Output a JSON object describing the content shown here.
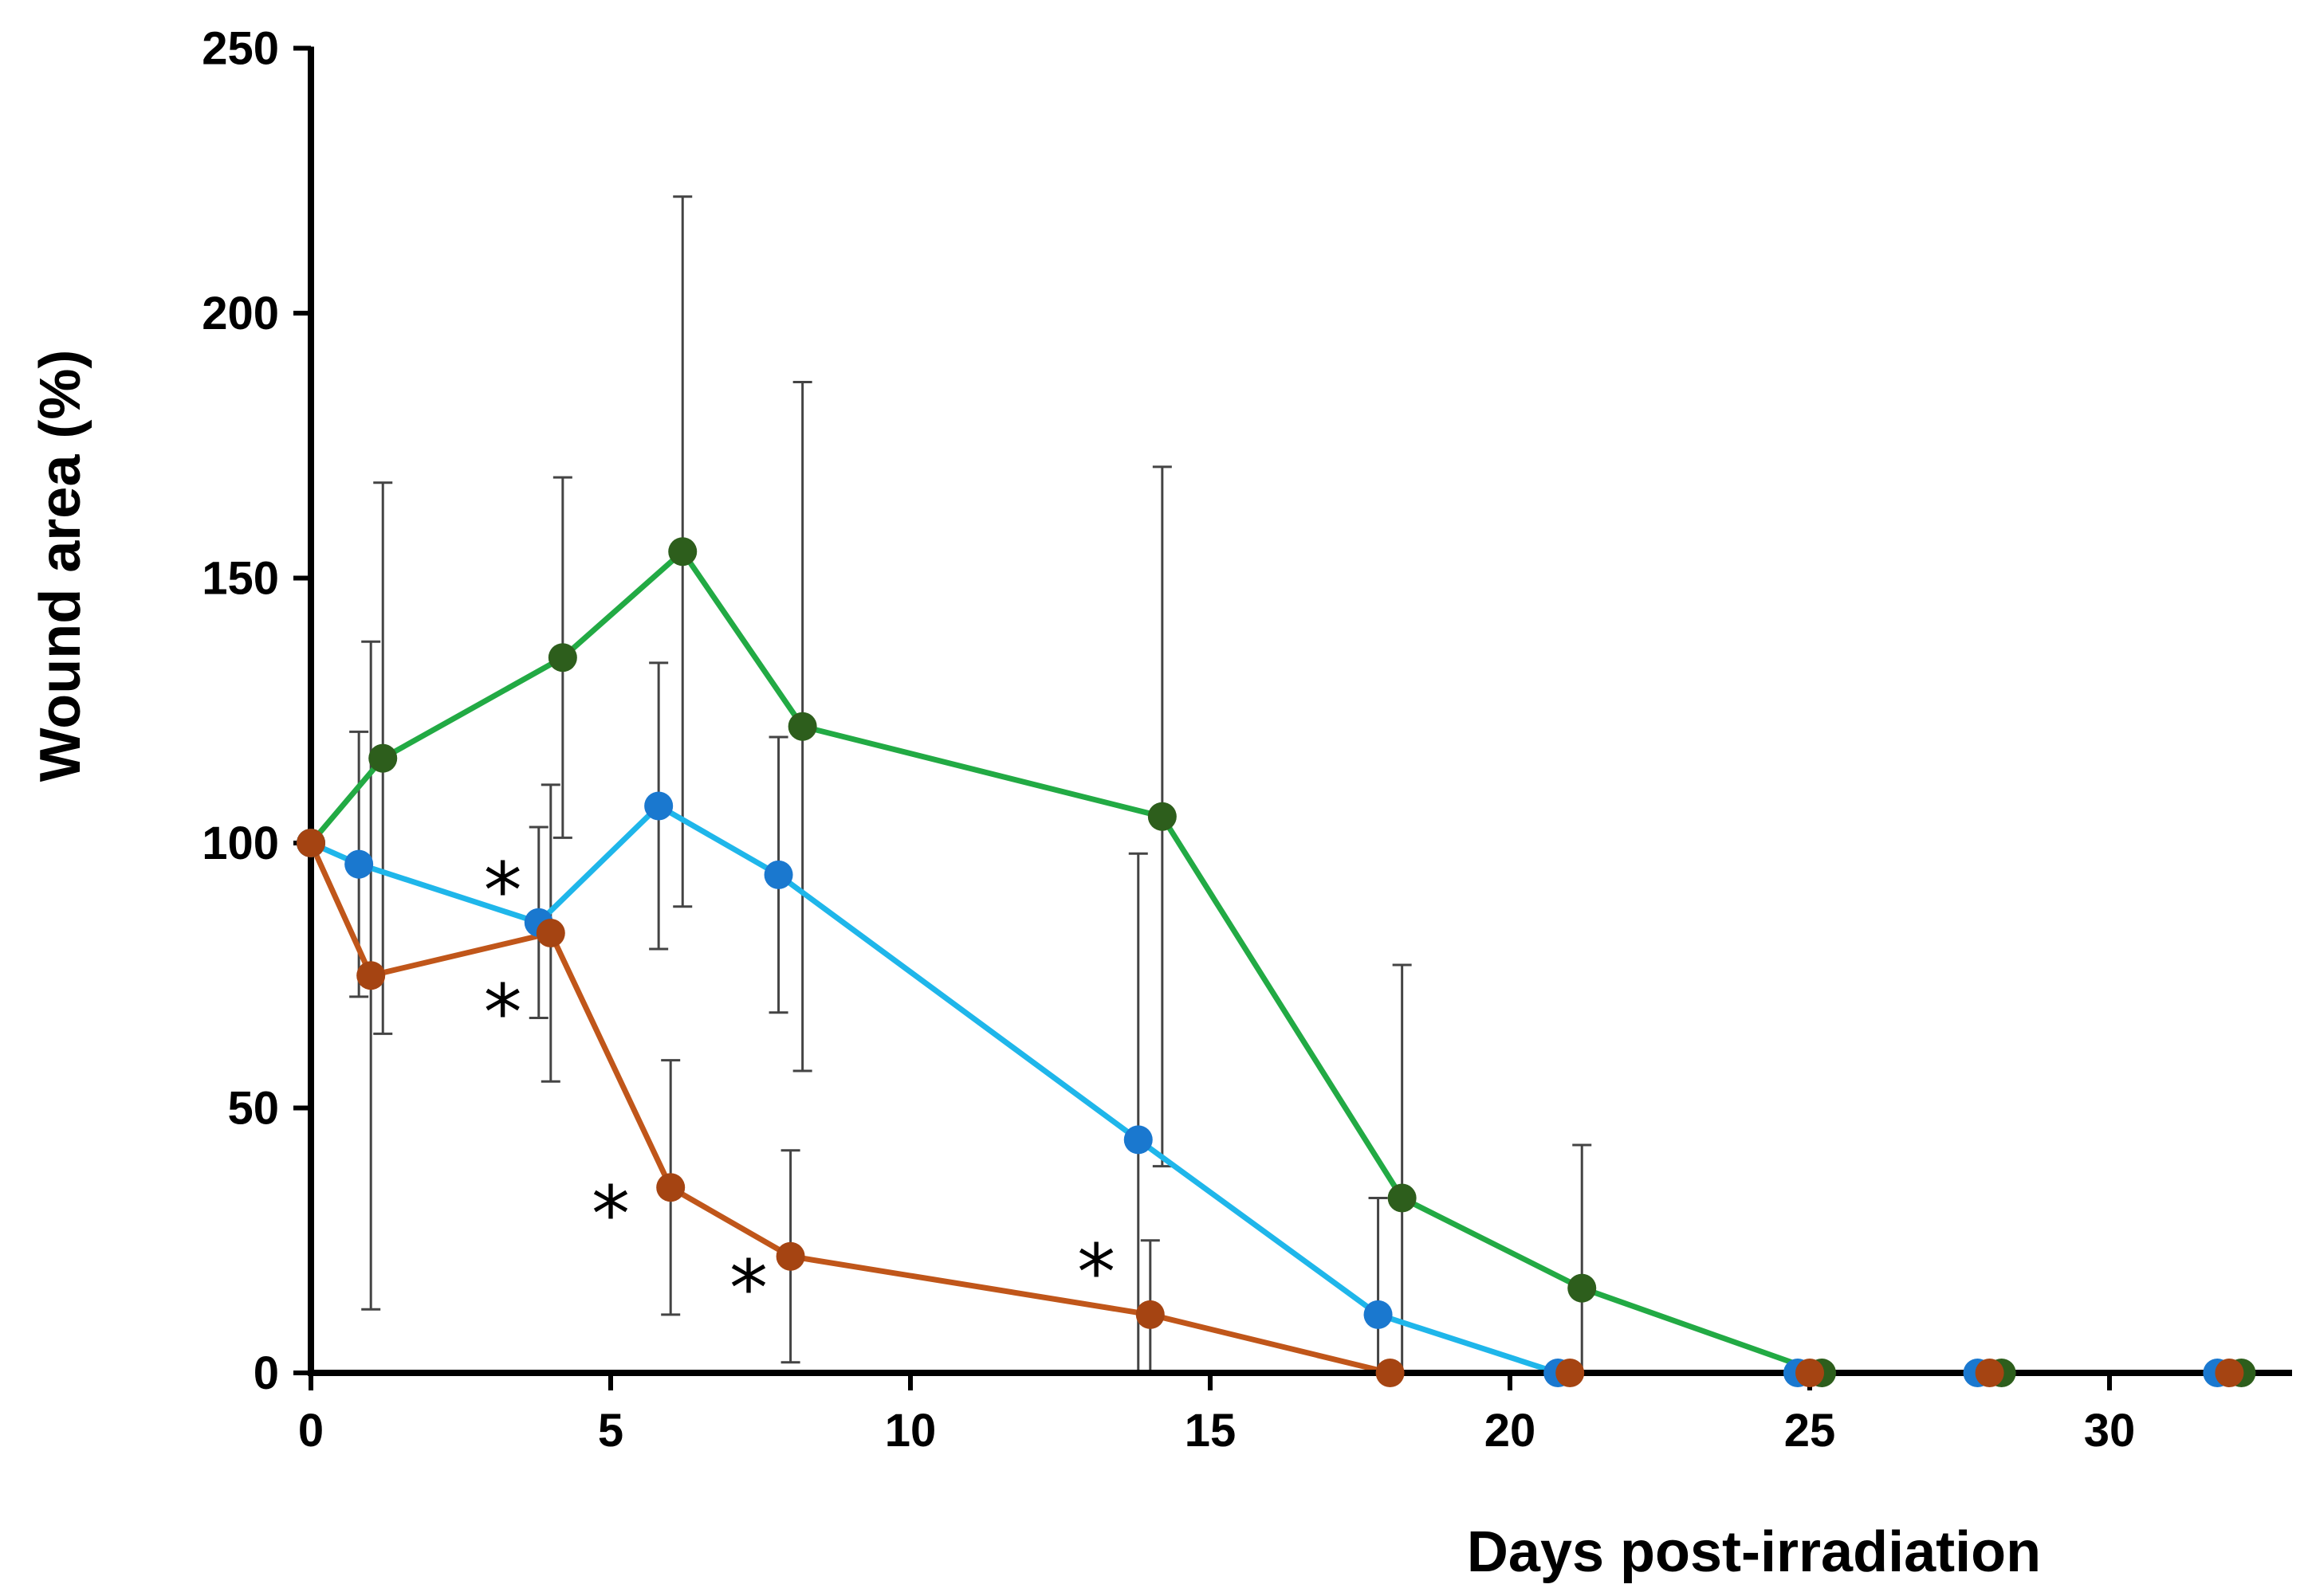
{
  "chart_data": {
    "type": "line",
    "title": "",
    "xlabel": "Days post-irradiation",
    "ylabel": "Wound area (%)",
    "xlim": [
      0,
      33
    ],
    "ylim": [
      0,
      250
    ],
    "xticks": [
      0,
      5,
      10,
      15,
      20,
      25,
      30
    ],
    "yticks": [
      0,
      50,
      100,
      150,
      200,
      250
    ],
    "grid": false,
    "legend": "none",
    "series": [
      {
        "color": "#22aa44",
        "marker_color": "#2d5e1c",
        "points": [
          {
            "x": 0,
            "y": 100
          },
          {
            "x": 1.2,
            "y": 116,
            "err": 52
          },
          {
            "x": 4.2,
            "y": 135,
            "err": 34
          },
          {
            "x": 6.2,
            "y": 155,
            "err": 67
          },
          {
            "x": 8.2,
            "y": 122,
            "err": 65
          },
          {
            "x": 14.2,
            "y": 105,
            "err": 66
          },
          {
            "x": 18.2,
            "y": 33,
            "err": 44
          },
          {
            "x": 21.2,
            "y": 16,
            "err": 27
          },
          {
            "x": 25.2,
            "y": 0
          },
          {
            "x": 28.2,
            "y": 0
          },
          {
            "x": 32.2,
            "y": 0
          }
        ]
      },
      {
        "color": "#1fb6ea",
        "marker_color": "#1a78cf",
        "points": [
          {
            "x": 0,
            "y": 100
          },
          {
            "x": 0.8,
            "y": 96,
            "err": 25
          },
          {
            "x": 3.8,
            "y": 85,
            "err": 18
          },
          {
            "x": 5.8,
            "y": 107,
            "err": 27
          },
          {
            "x": 7.8,
            "y": 94,
            "err": 26
          },
          {
            "x": 13.8,
            "y": 44,
            "err": 54
          },
          {
            "x": 17.8,
            "y": 11,
            "err": 22
          },
          {
            "x": 20.8,
            "y": 0
          },
          {
            "x": 24.8,
            "y": 0
          },
          {
            "x": 27.8,
            "y": 0
          },
          {
            "x": 31.8,
            "y": 0
          }
        ]
      },
      {
        "color": "#c0561a",
        "marker_color": "#a54412",
        "points": [
          {
            "x": 0,
            "y": 100
          },
          {
            "x": 1.0,
            "y": 75,
            "err": 63
          },
          {
            "x": 4.0,
            "y": 83,
            "err": 28
          },
          {
            "x": 6.0,
            "y": 35,
            "err": 24
          },
          {
            "x": 8.0,
            "y": 22,
            "err": 20
          },
          {
            "x": 14.0,
            "y": 11,
            "err": 14
          },
          {
            "x": 18.0,
            "y": 0
          },
          {
            "x": 21.0,
            "y": 0
          },
          {
            "x": 25.0,
            "y": 0
          },
          {
            "x": 28.0,
            "y": 0
          },
          {
            "x": 32.0,
            "y": 0
          }
        ]
      }
    ],
    "annotations": [
      {
        "text": "*",
        "x": 3.2,
        "y": 92
      },
      {
        "text": "*",
        "x": 3.2,
        "y": 69
      },
      {
        "text": "*",
        "x": 5.0,
        "y": 31
      },
      {
        "text": "*",
        "x": 7.3,
        "y": 17
      },
      {
        "text": "*",
        "x": 13.1,
        "y": 20
      }
    ]
  }
}
